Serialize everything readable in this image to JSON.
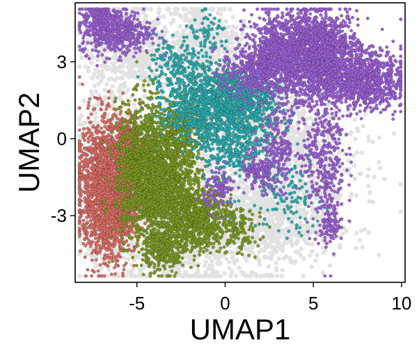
{
  "chart_data": {
    "type": "scatter",
    "xlabel": "UMAP1",
    "ylabel": "UMAP2",
    "xlim": [
      -8.5,
      10.2
    ],
    "ylim": [
      -5.6,
      5.3
    ],
    "x_ticks": [
      -5,
      0,
      5,
      10
    ],
    "y_ticks": [
      -3,
      0,
      3
    ],
    "grid": false,
    "legend": "none",
    "background_color": "#e2e2e2",
    "series": [
      {
        "color": "#e06b63",
        "clusters": [
          {
            "cx": -6.9,
            "cy": -1.9,
            "sx": 0.75,
            "sy": 1.35,
            "n": 1500
          },
          {
            "cx": -5.9,
            "cy": -2.3,
            "sx": 0.55,
            "sy": 1.1,
            "n": 700
          },
          {
            "cx": -5.6,
            "cy": -0.3,
            "sx": 0.5,
            "sy": 0.6,
            "n": 300
          }
        ]
      },
      {
        "color": "#7a9a1e",
        "clusters": [
          {
            "cx": -4.7,
            "cy": -1.3,
            "sx": 0.75,
            "sy": 1.3,
            "n": 1200
          },
          {
            "cx": -3.3,
            "cy": -1.7,
            "sx": 0.85,
            "sy": 1.25,
            "n": 1200
          },
          {
            "cx": -1.6,
            "cy": -3.1,
            "sx": 1.0,
            "sy": 0.65,
            "n": 800
          },
          {
            "cx": -3.6,
            "cy": -4.3,
            "sx": 0.5,
            "sy": 0.45,
            "n": 250
          },
          {
            "cx": -2.6,
            "cy": 0.3,
            "sx": 0.7,
            "sy": 0.6,
            "n": 300
          },
          {
            "cx": 0.6,
            "cy": -3.6,
            "sx": 0.7,
            "sy": 0.45,
            "n": 120
          }
        ]
      },
      {
        "color": "#27aeb0",
        "clusters": [
          {
            "cx": -1.6,
            "cy": 1.4,
            "sx": 0.9,
            "sy": 0.75,
            "n": 600
          },
          {
            "cx": 0.6,
            "cy": 1.6,
            "sx": 1.0,
            "sy": 0.6,
            "n": 700
          },
          {
            "cx": 0.2,
            "cy": 0.0,
            "sx": 0.9,
            "sy": 0.8,
            "n": 450
          },
          {
            "cx": -2.8,
            "cy": 2.9,
            "sx": 0.75,
            "sy": 0.55,
            "n": 160
          },
          {
            "cx": -0.9,
            "cy": 4.0,
            "sx": 0.6,
            "sy": 0.4,
            "n": 70
          },
          {
            "cx": 3.3,
            "cy": -2.2,
            "sx": 1.1,
            "sy": 0.8,
            "n": 120
          },
          {
            "cx": 2.2,
            "cy": 1.0,
            "sx": 0.6,
            "sy": 0.7,
            "n": 120
          }
        ]
      },
      {
        "color": "#9c5fd9",
        "clusters": [
          {
            "cx": 3.6,
            "cy": 3.3,
            "sx": 1.2,
            "sy": 0.8,
            "n": 1300
          },
          {
            "cx": 5.6,
            "cy": 3.3,
            "sx": 1.0,
            "sy": 0.8,
            "n": 1200
          },
          {
            "cx": 7.9,
            "cy": 2.3,
            "sx": 1.1,
            "sy": 0.55,
            "n": 900
          },
          {
            "cx": 1.6,
            "cy": 2.6,
            "sx": 0.9,
            "sy": 0.5,
            "n": 350
          },
          {
            "cx": -6.2,
            "cy": 4.2,
            "sx": 1.0,
            "sy": 0.45,
            "n": 500
          },
          {
            "cx": -7.3,
            "cy": 4.8,
            "sx": 0.4,
            "sy": 0.3,
            "n": 100
          },
          {
            "cx": 5.6,
            "cy": -0.5,
            "sx": 0.6,
            "sy": 1.6,
            "n": 400
          },
          {
            "cx": 6.0,
            "cy": -3.4,
            "sx": 0.25,
            "sy": 0.35,
            "n": 80
          },
          {
            "cx": -0.3,
            "cy": -2.0,
            "sx": 0.45,
            "sy": 0.4,
            "n": 110
          },
          {
            "cx": 1.9,
            "cy": -1.4,
            "sx": 0.5,
            "sy": 0.4,
            "n": 110
          },
          {
            "cx": 3.0,
            "cy": -0.3,
            "sx": 0.6,
            "sy": 0.8,
            "n": 220
          }
        ]
      }
    ],
    "background_clusters": [
      {
        "cx": -2.5,
        "cy": -3.5,
        "sx": 1.9,
        "sy": 1.2,
        "n": 900
      },
      {
        "cx": 2.2,
        "cy": -3.3,
        "sx": 2.0,
        "sy": 0.9,
        "n": 800
      },
      {
        "cx": -1.3,
        "cy": 3.7,
        "sx": 1.0,
        "sy": 0.9,
        "n": 500
      },
      {
        "cx": -5.5,
        "cy": 3.6,
        "sx": 1.2,
        "sy": 0.9,
        "n": 600
      },
      {
        "cx": 3.6,
        "cy": -0.6,
        "sx": 2.0,
        "sy": 1.3,
        "n": 900
      },
      {
        "cx": -6.5,
        "cy": -1.5,
        "sx": 1.1,
        "sy": 1.7,
        "n": 700
      },
      {
        "cx": 0.5,
        "cy": 1.2,
        "sx": 1.6,
        "sy": 1.2,
        "n": 600
      }
    ]
  }
}
